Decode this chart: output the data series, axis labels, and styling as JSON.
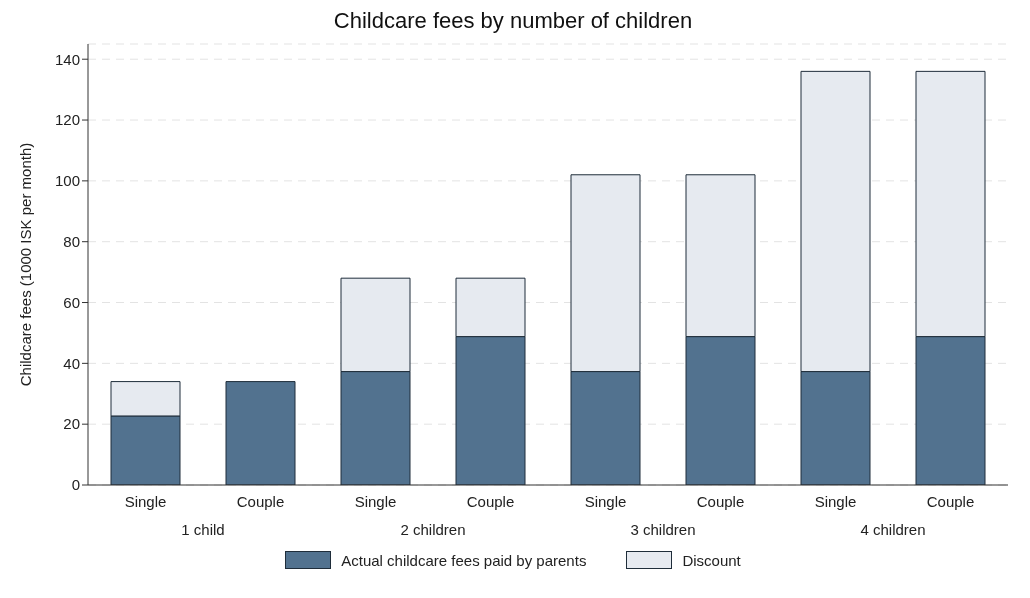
{
  "chart_data": {
    "type": "bar",
    "title": "Childcare fees by number of children",
    "ylabel": "Childcare fees (1000 ISK per month)",
    "categories": [
      "Single",
      "Couple",
      "Single",
      "Couple",
      "Single",
      "Couple",
      "Single",
      "Couple"
    ],
    "annotations": [
      "1 child",
      "2 children",
      "3 children",
      "4 children"
    ],
    "stacked": true,
    "series": [
      {
        "name": "Actual childcare fees paid by parents",
        "color": "#52728f",
        "values": [
          22.7,
          34,
          37.3,
          48.8,
          37.3,
          48.8,
          37.3,
          48.8
        ]
      },
      {
        "name": "Discount",
        "color": "#e6eaf0",
        "values": [
          11.3,
          0,
          30.7,
          19.2,
          64.7,
          53.2,
          98.7,
          87.2
        ]
      }
    ],
    "ylim": [
      0,
      145
    ],
    "yticks": [
      0,
      20,
      40,
      60,
      80,
      100,
      120,
      140
    ],
    "grid": "y",
    "legend": "bottom"
  }
}
